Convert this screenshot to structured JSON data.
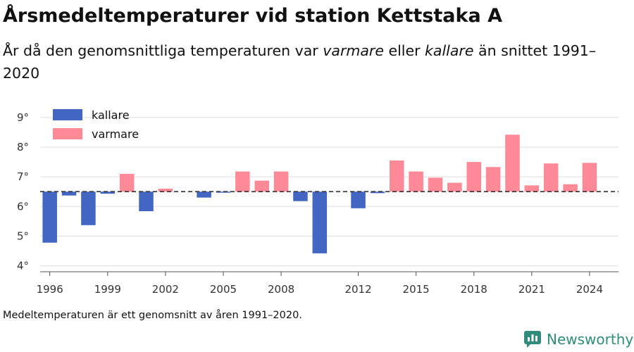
{
  "header": {
    "title": "Årsmedeltemperaturer vid station Kettstaka A",
    "subtitle_before": "År då den genomsnittliga temperaturen var ",
    "subtitle_warm": "varmare",
    "subtitle_mid": " eller ",
    "subtitle_cold": "kallare",
    "subtitle_after": " än snittet 1991–2020"
  },
  "footer": {
    "note": "Medeltemperaturen är ett genomsnitt av åren 1991–2020.",
    "brand": "Newsworthy"
  },
  "chart_data": {
    "type": "bar",
    "title": "Årsmedeltemperaturer vid station Kettstaka A",
    "subtitle": "År då den genomsnittliga temperaturen var varmare eller kallare än snittet 1991–2020",
    "xlabel": "",
    "ylabel": "",
    "baseline": 6.5,
    "ylim": [
      3.8,
      9.4
    ],
    "y_ticks": [
      4,
      5,
      6,
      7,
      8,
      9
    ],
    "y_tick_labels": [
      "4°",
      "5°",
      "6°",
      "7°",
      "8°",
      "9°"
    ],
    "x_ticks": [
      1996,
      1999,
      2002,
      2005,
      2008,
      2012,
      2015,
      2018,
      2021,
      2024
    ],
    "legend_position": "top-left",
    "grid": true,
    "series": [
      {
        "name": "kallare",
        "color": "#4266c1"
      },
      {
        "name": "varmare",
        "color": "#ff8a97"
      }
    ],
    "years": [
      1996,
      1997,
      1998,
      1999,
      2000,
      2001,
      2002,
      2003,
      2004,
      2005,
      2006,
      2007,
      2008,
      2009,
      2010,
      2011,
      2012,
      2013,
      2014,
      2015,
      2016,
      2017,
      2018,
      2019,
      2020,
      2021,
      2022,
      2023,
      2024
    ],
    "values": [
      4.78,
      6.37,
      5.37,
      6.43,
      7.1,
      5.84,
      6.6,
      null,
      6.3,
      6.47,
      7.18,
      6.87,
      7.18,
      6.18,
      4.42,
      null,
      5.94,
      6.45,
      7.55,
      7.18,
      6.97,
      6.8,
      7.5,
      7.33,
      8.42,
      6.71,
      7.45,
      6.75,
      7.47
    ]
  }
}
